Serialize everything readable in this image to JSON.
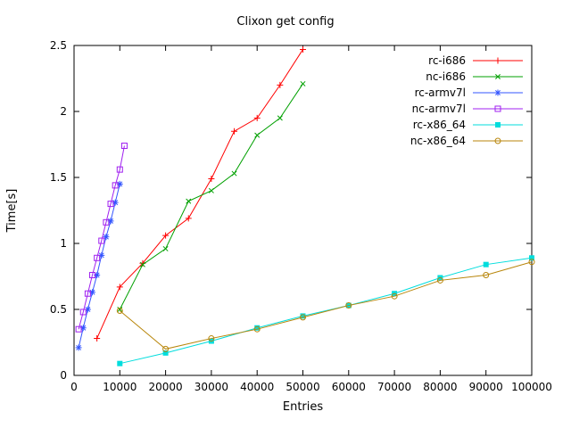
{
  "chart_data": {
    "type": "line",
    "title": "Clixon get config",
    "xlabel": "Entries",
    "ylabel": "Time[s]",
    "xlim": [
      0,
      100000
    ],
    "ylim": [
      0,
      2.5
    ],
    "x_ticks": [
      0,
      10000,
      20000,
      30000,
      40000,
      50000,
      60000,
      70000,
      80000,
      90000,
      100000
    ],
    "y_ticks": [
      0,
      0.5,
      1,
      1.5,
      2,
      2.5
    ],
    "grid": false,
    "background": "#ffffff",
    "legend_position": "top-right",
    "series": [
      {
        "name": "rc-i686",
        "color": "#ff0000",
        "marker": "plus",
        "x": [
          5000,
          10000,
          15000,
          20000,
          25000,
          30000,
          35000,
          40000,
          45000,
          50000
        ],
        "y": [
          0.28,
          0.67,
          0.85,
          1.06,
          1.19,
          1.49,
          1.85,
          1.95,
          2.2,
          2.47
        ]
      },
      {
        "name": "nc-i686",
        "color": "#00a000",
        "marker": "cross",
        "x": [
          10000,
          15000,
          20000,
          25000,
          30000,
          35000,
          40000,
          45000,
          50000
        ],
        "y": [
          0.5,
          0.84,
          0.96,
          1.32,
          1.4,
          1.53,
          1.82,
          1.95,
          2.21
        ]
      },
      {
        "name": "rc-armv7l",
        "color": "#3355ff",
        "marker": "asterisk",
        "x": [
          1000,
          2000,
          3000,
          4000,
          5000,
          6000,
          7000,
          8000,
          9000,
          10000
        ],
        "y": [
          0.21,
          0.36,
          0.5,
          0.63,
          0.76,
          0.91,
          1.05,
          1.17,
          1.31,
          1.45
        ]
      },
      {
        "name": "nc-armv7l",
        "color": "#a020f0",
        "marker": "square-open",
        "x": [
          1000,
          2000,
          3000,
          4000,
          5000,
          6000,
          7000,
          8000,
          9000,
          10000,
          11000
        ],
        "y": [
          0.35,
          0.48,
          0.62,
          0.76,
          0.89,
          1.02,
          1.16,
          1.3,
          1.44,
          1.56,
          1.74
        ]
      },
      {
        "name": "rc-x86_64",
        "color": "#00dddd",
        "marker": "square-filled",
        "x": [
          10000,
          20000,
          30000,
          40000,
          50000,
          60000,
          70000,
          80000,
          90000,
          100000
        ],
        "y": [
          0.09,
          0.17,
          0.26,
          0.36,
          0.45,
          0.53,
          0.62,
          0.74,
          0.84,
          0.89
        ]
      },
      {
        "name": "nc-x86_64",
        "color": "#b8860b",
        "marker": "circle-open",
        "x": [
          10000,
          20000,
          30000,
          40000,
          50000,
          60000,
          70000,
          80000,
          90000,
          100000
        ],
        "y": [
          0.49,
          0.2,
          0.28,
          0.35,
          0.44,
          0.53,
          0.6,
          0.72,
          0.76,
          0.86
        ]
      }
    ]
  }
}
